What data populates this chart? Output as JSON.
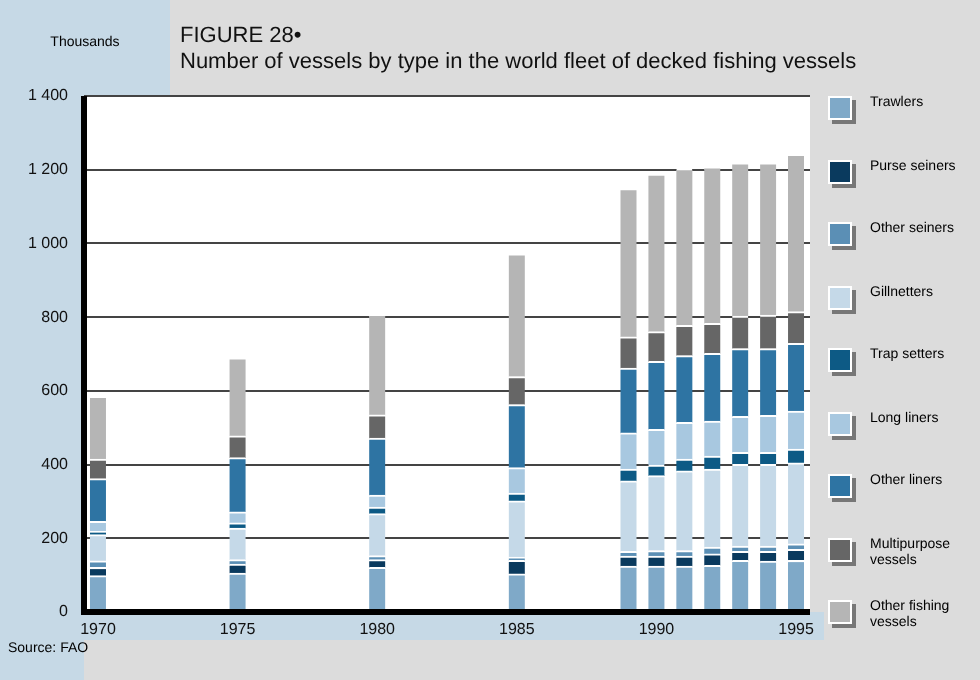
{
  "chart_data": {
    "type": "bar",
    "stacked": true,
    "title": "FIGURE 28•",
    "subtitle": "Number of vessels by type in the world fleet of decked fishing vessels",
    "ylabel": "Thousands",
    "annotations": [
      "Source: FAO"
    ],
    "x": [
      1970,
      1975,
      1980,
      1985,
      1989,
      1990,
      1991,
      1992,
      1993,
      1994,
      1995
    ],
    "xlim": [
      1969.5,
      1995.5
    ],
    "xticks": [
      1970,
      1975,
      1980,
      1985,
      1990,
      1995
    ],
    "ylim": [
      0,
      1400
    ],
    "yticks": [
      0,
      200,
      400,
      600,
      800,
      {
        "value": 1000,
        "label": "1 000"
      },
      {
        "value": 1200,
        "label": "1 200"
      },
      {
        "value": 1400,
        "label": "1 400"
      }
    ],
    "grid": "y",
    "legend": "right",
    "series": [
      {
        "name": "Trawlers",
        "color": "#7fa9c8",
        "values": [
          98,
          105,
          120,
          103,
          124,
          124,
          124,
          126,
          139,
          137,
          139
        ]
      },
      {
        "name": "Purse seiners",
        "color": "#0a3a5e",
        "values": [
          22,
          24,
          21,
          36,
          27,
          27,
          27,
          31,
          25,
          27,
          30
        ]
      },
      {
        "name": "Other seiners",
        "color": "#5b8fb5",
        "values": [
          18,
          12,
          11,
          9,
          13,
          15,
          15,
          18,
          14,
          14,
          15
        ]
      },
      {
        "name": "Gillnetters",
        "color": "#c5d9e8",
        "values": [
          71,
          86,
          114,
          153,
          191,
          203,
          216,
          212,
          222,
          222,
          220
        ]
      },
      {
        "name": "Trap setters",
        "color": "#0d5a85",
        "values": [
          9,
          14,
          18,
          21,
          32,
          29,
          32,
          35,
          32,
          32,
          37
        ]
      },
      {
        "name": "Long liners",
        "color": "#a8c8e0",
        "values": [
          27,
          30,
          32,
          69,
          98,
          97,
          100,
          95,
          98,
          101,
          103
        ]
      },
      {
        "name": "Other liners",
        "color": "#2e74a3",
        "values": [
          116,
          147,
          155,
          171,
          176,
          184,
          181,
          184,
          184,
          181,
          184
        ]
      },
      {
        "name": "Multipurpose vessels",
        "color": "#666666",
        "values": [
          53,
          59,
          63,
          76,
          85,
          81,
          82,
          81,
          88,
          91,
          86
        ]
      },
      {
        "name": "Other fishing vessels",
        "color": "#b5b5b5",
        "values": [
          170,
          212,
          273,
          333,
          402,
          427,
          425,
          425,
          416,
          413,
          427
        ]
      }
    ]
  }
}
